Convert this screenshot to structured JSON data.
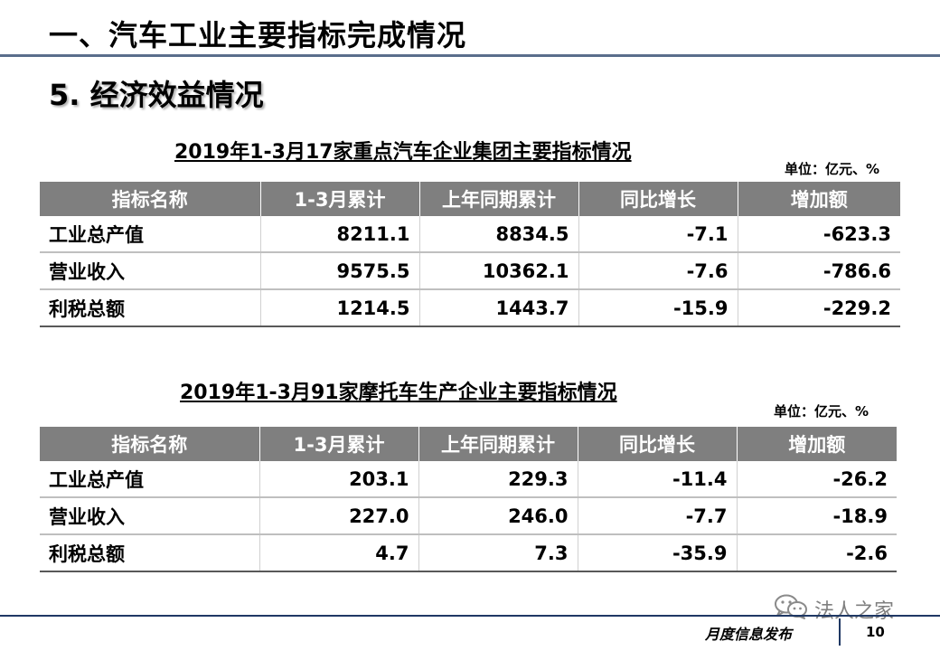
{
  "header": {
    "main_title": "一、汽车工业主要指标完成情况",
    "sub_title": "5. 经济效益情况"
  },
  "tables": [
    {
      "caption": "2019年1-3月17家重点汽车企业集团主要指标情况",
      "unit": "单位：亿元、%",
      "columns": [
        "指标名称",
        "1-3月累计",
        "上年同期累计",
        "同比增长",
        "增加额"
      ],
      "rows": [
        [
          "工业总产值",
          "8211.1",
          "8834.5",
          "-7.1",
          "-623.3"
        ],
        [
          "营业收入",
          "9575.5",
          "10362.1",
          "-7.6",
          "-786.6"
        ],
        [
          "利税总额",
          "1214.5",
          "1443.7",
          "-15.9",
          "-229.2"
        ]
      ]
    },
    {
      "caption": "2019年1-3月91家摩托车生产企业主要指标情况",
      "unit": "单位：亿元、%",
      "columns": [
        "指标名称",
        "1-3月累计",
        "上年同期累计",
        "同比增长",
        "增加额"
      ],
      "rows": [
        [
          "工业总产值",
          "203.1",
          "229.3",
          "-11.4",
          "-26.2"
        ],
        [
          "营业收入",
          "227.0",
          "246.0",
          "-7.7",
          "-18.9"
        ],
        [
          "利税总额",
          "4.7",
          "7.3",
          "-35.9",
          "-2.6"
        ]
      ]
    }
  ],
  "watermark": {
    "icon": "wechat-icon",
    "text": "法人之家"
  },
  "footer": {
    "label": "月度信息发布",
    "page_number": "10"
  }
}
